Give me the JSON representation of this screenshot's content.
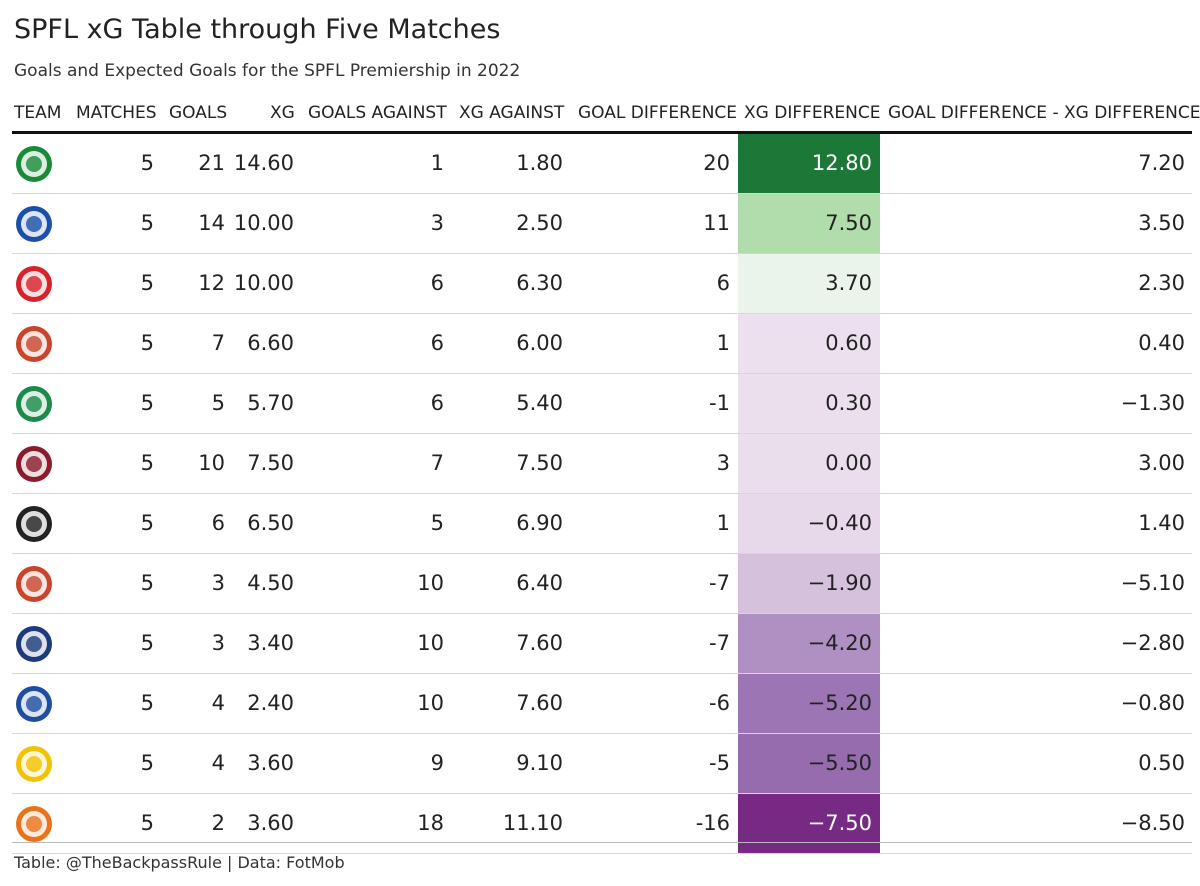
{
  "title": "SPFL xG Table through Five Matches",
  "subtitle": "Goals and Expected Goals for the SPFL Premiership in 2022",
  "footer": "Table: @TheBackpassRule | Data: FotMob",
  "headers": {
    "team": "TEAM",
    "matches": "MATCHES",
    "goals": "GOALS",
    "xg": "XG",
    "goals_against": "GOALS AGAINST",
    "xg_against": "XG AGAINST",
    "goal_diff": "GOAL DIFFERENCE",
    "xg_diff": "XG DIFFERENCE",
    "gd_minus_xgd": "GOAL DIFFERENCE - XG DIFFERENCE"
  },
  "chart_data": {
    "type": "table",
    "title": "SPFL xG Table through Five Matches",
    "columns": [
      "TEAM",
      "MATCHES",
      "GOALS",
      "XG",
      "GOALS AGAINST",
      "XG AGAINST",
      "GOAL DIFFERENCE",
      "XG DIFFERENCE",
      "GOAL DIFFERENCE - XG DIFFERENCE"
    ],
    "rows": [
      {
        "crest": "celtic-crest-icon",
        "crest_color": "#1a8a3a",
        "matches": "5",
        "goals": "21",
        "xg": "14.60",
        "goals_against": "1",
        "xg_against": "1.80",
        "goal_diff": "20",
        "xg_diff": "12.80",
        "xg_diff_value": 12.8,
        "xg_diff_color": "#1b7837",
        "xg_diff_text_color": "#ffffff",
        "gd_minus_xgd": "7.20"
      },
      {
        "crest": "rangers-crest-icon",
        "crest_color": "#1b4fa8",
        "matches": "5",
        "goals": "14",
        "xg": "10.00",
        "goals_against": "3",
        "xg_against": "2.50",
        "goal_diff": "11",
        "xg_diff": "7.50",
        "xg_diff_value": 7.5,
        "xg_diff_color": "#b1dcab",
        "xg_diff_text_color": "#222222",
        "gd_minus_xgd": "3.50"
      },
      {
        "crest": "aberdeen-crest-icon",
        "crest_color": "#d5222b",
        "matches": "5",
        "goals": "12",
        "xg": "10.00",
        "goals_against": "6",
        "xg_against": "6.30",
        "goal_diff": "6",
        "xg_diff": "3.70",
        "xg_diff_value": 3.7,
        "xg_diff_color": "#ebf4ea",
        "xg_diff_text_color": "#222222",
        "gd_minus_xgd": "2.30"
      },
      {
        "crest": "kilmarnock-crest-icon",
        "crest_color": "#c8452c",
        "matches": "5",
        "goals": "7",
        "xg": "6.60",
        "goals_against": "6",
        "xg_against": "6.00",
        "goal_diff": "1",
        "xg_diff": "0.60",
        "xg_diff_value": 0.6,
        "xg_diff_color": "#ece0ee",
        "xg_diff_text_color": "#222222",
        "gd_minus_xgd": "0.40"
      },
      {
        "crest": "hibernian-crest-icon",
        "crest_color": "#1b8a4a",
        "matches": "5",
        "goals": "5",
        "xg": "5.70",
        "goals_against": "6",
        "xg_against": "5.40",
        "goal_diff": "-1",
        "xg_diff": "0.30",
        "xg_diff_value": 0.3,
        "xg_diff_color": "#ebdfed",
        "xg_diff_text_color": "#222222",
        "gd_minus_xgd": "−1.30"
      },
      {
        "crest": "hearts-crest-icon",
        "crest_color": "#8a1c2c",
        "matches": "5",
        "goals": "10",
        "xg": "7.50",
        "goals_against": "7",
        "xg_against": "7.50",
        "goal_diff": "3",
        "xg_diff": "0.00",
        "xg_diff_value": 0.0,
        "xg_diff_color": "#eadeec",
        "xg_diff_text_color": "#222222",
        "gd_minus_xgd": "3.00"
      },
      {
        "crest": "st-mirren-crest-icon",
        "crest_color": "#222222",
        "matches": "5",
        "goals": "6",
        "xg": "6.50",
        "goals_against": "5",
        "xg_against": "6.90",
        "goal_diff": "1",
        "xg_diff": "−0.40",
        "xg_diff_value": -0.4,
        "xg_diff_color": "#e7d9e9",
        "xg_diff_text_color": "#222222",
        "gd_minus_xgd": "1.40"
      },
      {
        "crest": "kilmarnock-crest-icon",
        "crest_color": "#c8452c",
        "matches": "5",
        "goals": "3",
        "xg": "4.50",
        "goals_against": "10",
        "xg_against": "6.40",
        "goal_diff": "-7",
        "xg_diff": "−1.90",
        "xg_diff_value": -1.9,
        "xg_diff_color": "#d6c1dc",
        "xg_diff_text_color": "#222222",
        "gd_minus_xgd": "−5.10"
      },
      {
        "crest": "ross-county-crest-icon",
        "crest_color": "#1d3b7a",
        "matches": "5",
        "goals": "3",
        "xg": "3.40",
        "goals_against": "10",
        "xg_against": "7.60",
        "goal_diff": "-7",
        "xg_diff": "−4.20",
        "xg_diff_value": -4.2,
        "xg_diff_color": "#b08fc3",
        "xg_diff_text_color": "#222222",
        "gd_minus_xgd": "−2.80"
      },
      {
        "crest": "st-johnstone-crest-icon",
        "crest_color": "#1e4ea0",
        "matches": "5",
        "goals": "4",
        "xg": "2.40",
        "goals_against": "10",
        "xg_against": "7.60",
        "goal_diff": "-6",
        "xg_diff": "−5.20",
        "xg_diff_value": -5.2,
        "xg_diff_color": "#9c75b4",
        "xg_diff_text_color": "#222222",
        "gd_minus_xgd": "−0.80"
      },
      {
        "crest": "livingston-crest-icon",
        "crest_color": "#f2c200",
        "matches": "5",
        "goals": "4",
        "xg": "3.60",
        "goals_against": "9",
        "xg_against": "9.10",
        "goal_diff": "-5",
        "xg_diff": "−5.50",
        "xg_diff_value": -5.5,
        "xg_diff_color": "#966cae",
        "xg_diff_text_color": "#222222",
        "gd_minus_xgd": "0.50"
      },
      {
        "crest": "dundee-united-crest-icon",
        "crest_color": "#e8731c",
        "matches": "5",
        "goals": "2",
        "xg": "3.60",
        "goals_against": "18",
        "xg_against": "11.10",
        "goal_diff": "-16",
        "xg_diff": "−7.50",
        "xg_diff_value": -7.5,
        "xg_diff_color": "#762a83",
        "xg_diff_text_color": "#ffffff",
        "gd_minus_xgd": "−8.50"
      }
    ]
  }
}
